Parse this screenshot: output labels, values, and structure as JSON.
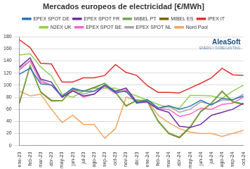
{
  "chart_data": {
    "type": "line",
    "title": "Mercados europeos de electricidad [€/MWh]",
    "annotations": [
      "AleaSoft",
      "ENERGY FORECASTING"
    ],
    "categories": [
      "ene-23",
      "feb-23",
      "mar-23",
      "abr-23",
      "may-23",
      "jun-23",
      "jul-23",
      "ago-23",
      "sep-23",
      "oct-23",
      "nov-23",
      "dic-23",
      "ene-24",
      "feb-24",
      "mar-24",
      "abr-24",
      "may-24",
      "jun-24",
      "jul-24",
      "ago-24",
      "sep-24",
      "oct-24"
    ],
    "series": [
      {
        "name": "EPEX SPOT DE",
        "color": "#2e75b6",
        "values": [
          118,
          128,
          102,
          100,
          82,
          95,
          90,
          90,
          100,
          88,
          90,
          70,
          76,
          62,
          66,
          60,
          65,
          75,
          67,
          78,
          76,
          82
        ]
      },
      {
        "name": "EPEX SPOT FR",
        "color": "#7030a0",
        "values": [
          130,
          145,
          110,
          105,
          80,
          90,
          82,
          85,
          100,
          90,
          95,
          72,
          72,
          60,
          55,
          32,
          30,
          35,
          50,
          55,
          60,
          70
        ]
      },
      {
        "name": "MIBEL PT",
        "color": "#70ad47",
        "values": [
          72,
          132,
          89,
          75,
          74,
          93,
          90,
          95,
          103,
          88,
          66,
          75,
          73,
          41,
          21,
          14,
          31,
          57,
          70,
          89,
          73,
          69
        ]
      },
      {
        "name": "MIBEL ES",
        "color": "#7f6000",
        "values": [
          70,
          132,
          88,
          74,
          74,
          93,
          90,
          96,
          103,
          88,
          65,
          75,
          73,
          40,
          20,
          13,
          30,
          56,
          70,
          90,
          72,
          68
        ]
      },
      {
        "name": "IPEX IT",
        "color": "#e03030",
        "values": [
          175,
          162,
          136,
          135,
          105,
          105,
          112,
          112,
          116,
          134,
          121,
          116,
          99,
          88,
          88,
          87,
          95,
          103,
          112,
          128,
          117,
          116
        ]
      },
      {
        "name": "N2EX UK",
        "color": "#92d050",
        "values": [
          150,
          152,
          130,
          115,
          85,
          80,
          90,
          95,
          95,
          95,
          88,
          82,
          75,
          68,
          63,
          62,
          83,
          83,
          82,
          78,
          90,
          100
        ]
      },
      {
        "name": "EPEX SPOT BE",
        "color": "#ff66cc",
        "values": [
          125,
          140,
          105,
          100,
          80,
          92,
          80,
          85,
          98,
          86,
          92,
          70,
          72,
          60,
          60,
          48,
          52,
          62,
          60,
          68,
          70,
          80
        ]
      },
      {
        "name": "EPEX SPOT NL",
        "color": "#a5a5a5",
        "values": [
          128,
          140,
          108,
          100,
          80,
          93,
          85,
          90,
          98,
          88,
          95,
          72,
          75,
          60,
          65,
          55,
          60,
          72,
          68,
          75,
          75,
          85
        ]
      },
      {
        "name": "Nord Pool",
        "color": "#f4a460",
        "values": [
          90,
          82,
          85,
          60,
          38,
          50,
          35,
          35,
          12,
          28,
          80,
          75,
          75,
          50,
          38,
          28,
          22,
          20,
          20,
          15,
          20,
          25
        ]
      }
    ],
    "ylim": [
      0,
      180
    ],
    "yticks": [
      0,
      20,
      40,
      60,
      80,
      100,
      120,
      140,
      160,
      180
    ],
    "grid": true,
    "legend": "top"
  }
}
